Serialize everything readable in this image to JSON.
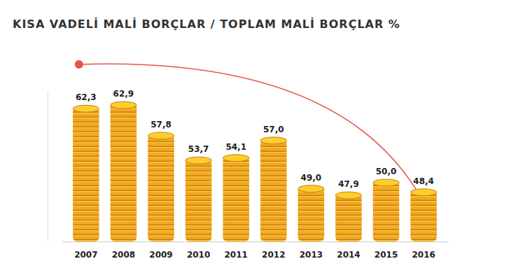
{
  "chart_data": {
    "type": "bar",
    "title": "KISA VADELİ MALİ BORÇLAR / TOPLAM MALİ BORÇLAR %",
    "categories": [
      "2007",
      "2008",
      "2009",
      "2010",
      "2011",
      "2012",
      "2013",
      "2014",
      "2015",
      "2016"
    ],
    "values": [
      62.3,
      62.9,
      57.8,
      53.7,
      54.1,
      57.0,
      49.0,
      47.9,
      50.0,
      48.4
    ],
    "value_labels": [
      "62,3",
      "62,9",
      "57,8",
      "53,7",
      "54,1",
      "57,0",
      "49,0",
      "47,9",
      "50,0",
      "48,4"
    ],
    "color": "#f5a623",
    "ylim": [
      40,
      65
    ],
    "yticks": [],
    "data_labels": true,
    "tick_labels": "x",
    "grid": false
  }
}
